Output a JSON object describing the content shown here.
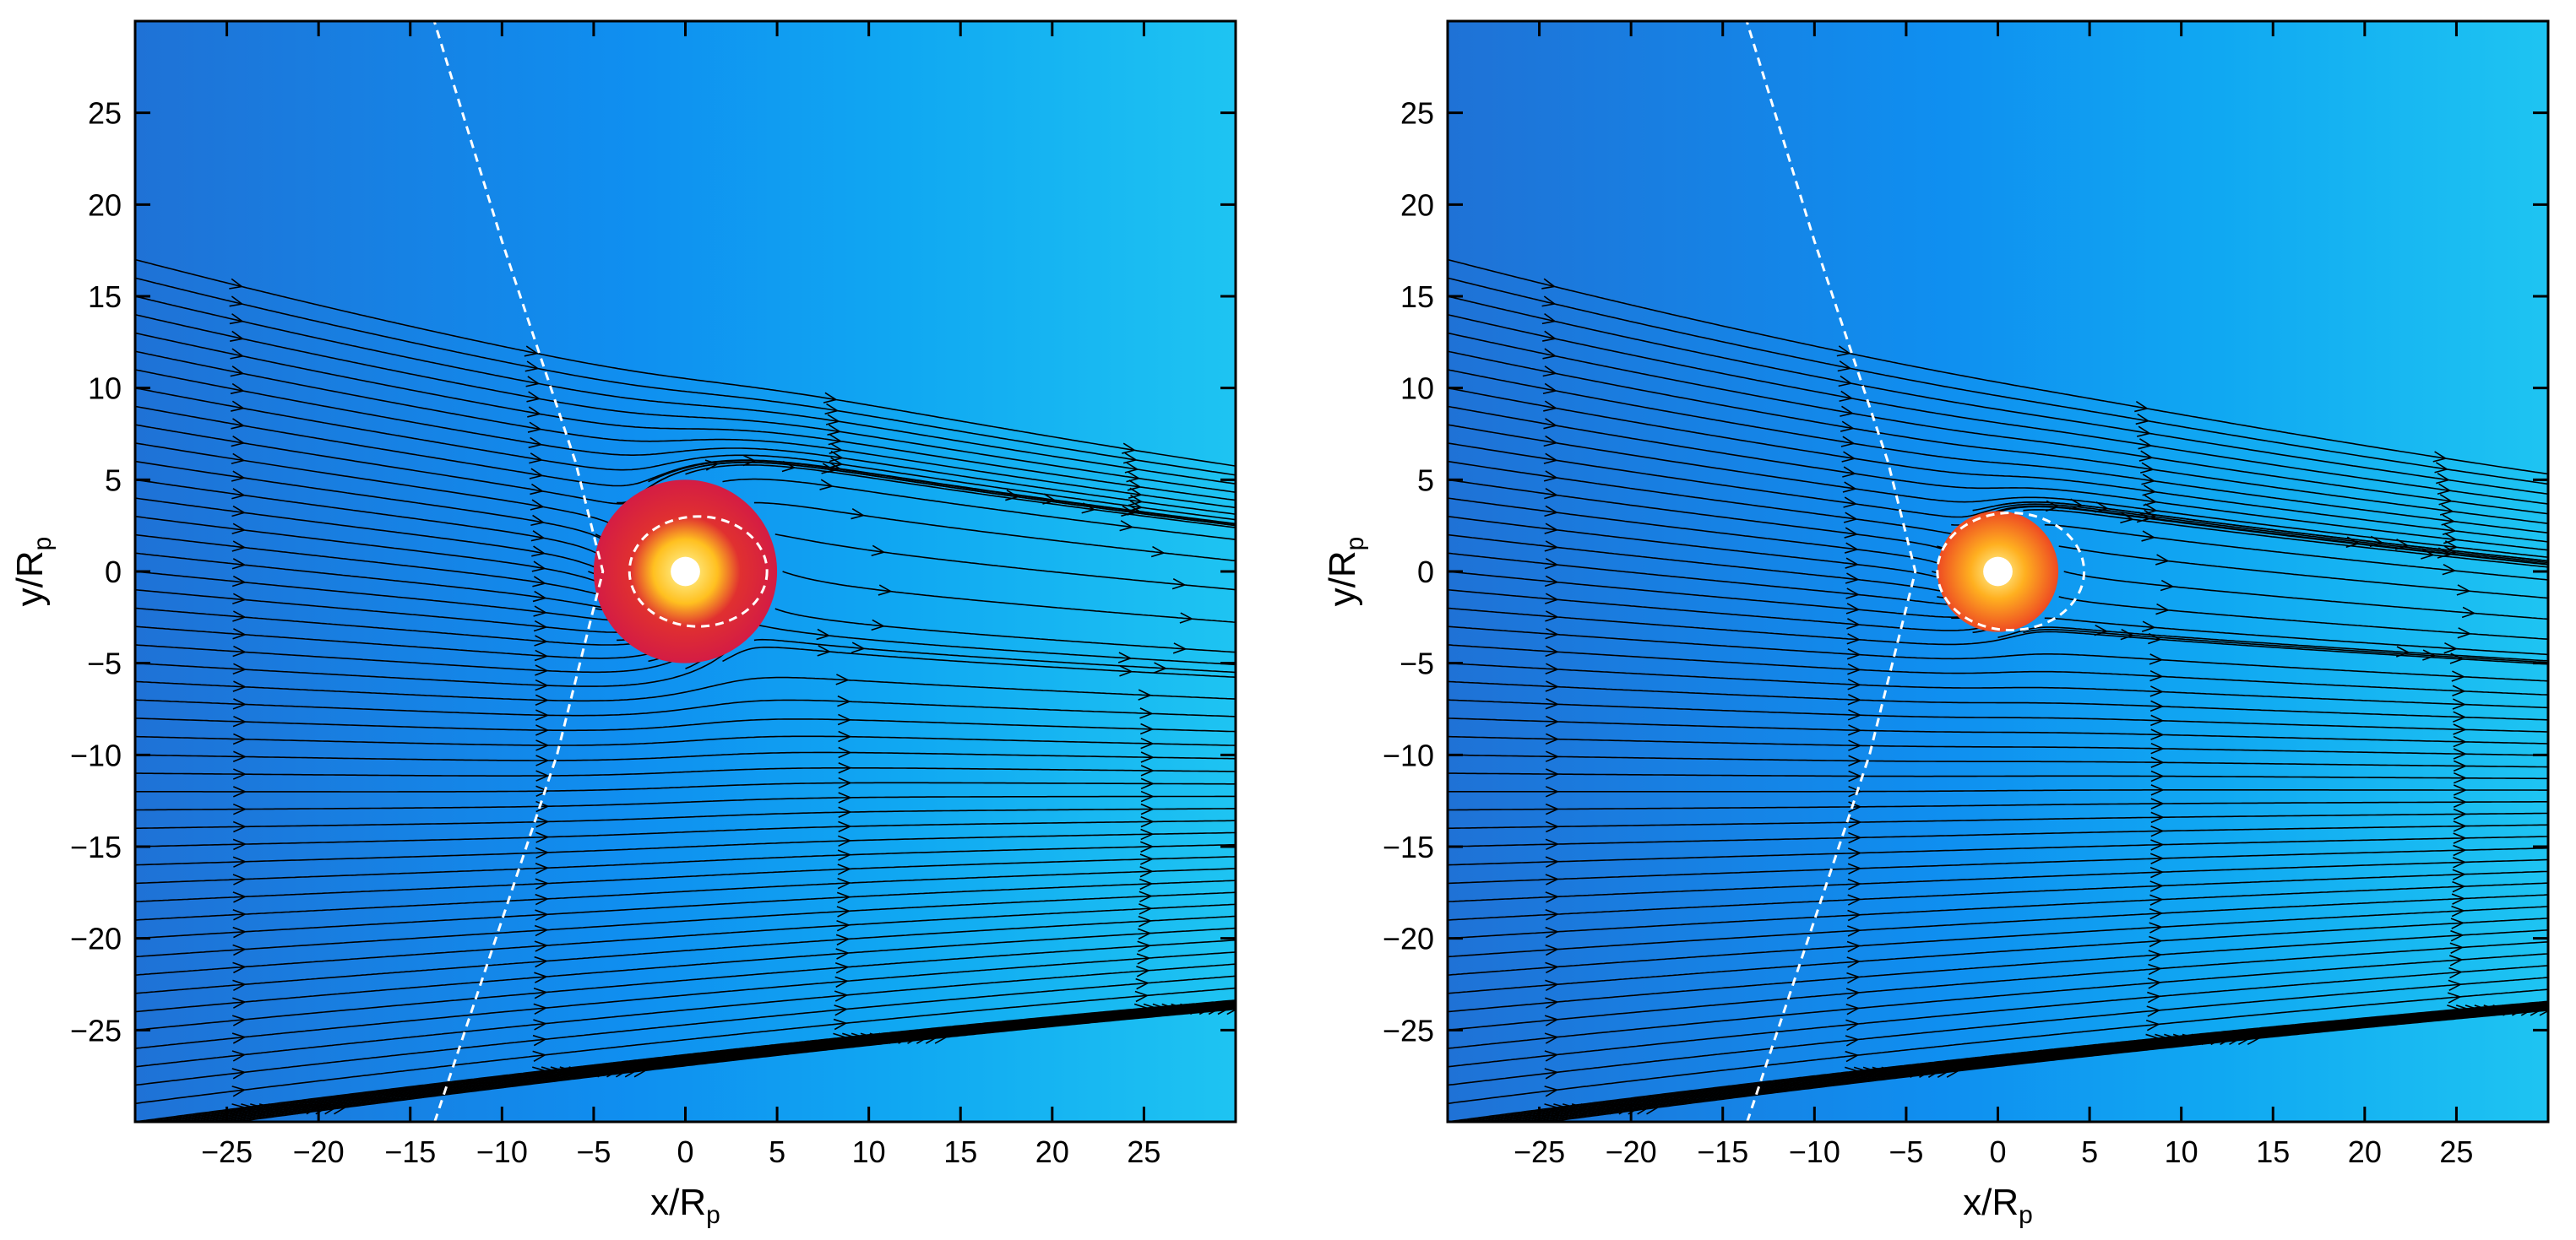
{
  "chart_data": [
    {
      "type": "stream",
      "xlabel": "x/R",
      "xlabel_sub": "p",
      "ylabel": "y/R",
      "ylabel_sub": "p",
      "xlim": [
        -30,
        30
      ],
      "ylim": [
        -30,
        30
      ],
      "xticks": [
        {
          "value": -25,
          "label": "−25"
        },
        {
          "value": -20,
          "label": "−20"
        },
        {
          "value": -15,
          "label": "−15"
        },
        {
          "value": -10,
          "label": "−10"
        },
        {
          "value": -5,
          "label": "−5"
        },
        0,
        5,
        10,
        15,
        20,
        25
      ],
      "yticks": [
        {
          "value": -25,
          "label": "−25"
        },
        {
          "value": -20,
          "label": "−20"
        },
        {
          "value": -15,
          "label": "−15"
        },
        {
          "value": -10,
          "label": "−10"
        },
        {
          "value": -5,
          "label": "−5"
        },
        0,
        5,
        10,
        15,
        20,
        25
      ]
    },
    {
      "type": "stream",
      "xlabel": "x/R",
      "xlabel_sub": "p",
      "ylabel": "y/R",
      "ylabel_sub": "p",
      "xlim": [
        -30,
        30
      ],
      "ylim": [
        -30,
        30
      ],
      "xticks": [
        {
          "value": -25,
          "label": "−25"
        },
        {
          "value": -20,
          "label": "−20"
        },
        {
          "value": -15,
          "label": "−15"
        },
        {
          "value": -10,
          "label": "−10"
        },
        {
          "value": -5,
          "label": "−5"
        },
        0,
        5,
        10,
        15,
        20,
        25
      ],
      "yticks": [
        {
          "value": -25,
          "label": "−25"
        },
        {
          "value": -20,
          "label": "−20"
        },
        {
          "value": -15,
          "label": "−15"
        },
        {
          "value": -10,
          "label": "−10"
        },
        {
          "value": -5,
          "label": "−5"
        },
        0,
        5,
        10,
        15,
        20,
        25
      ]
    }
  ]
}
